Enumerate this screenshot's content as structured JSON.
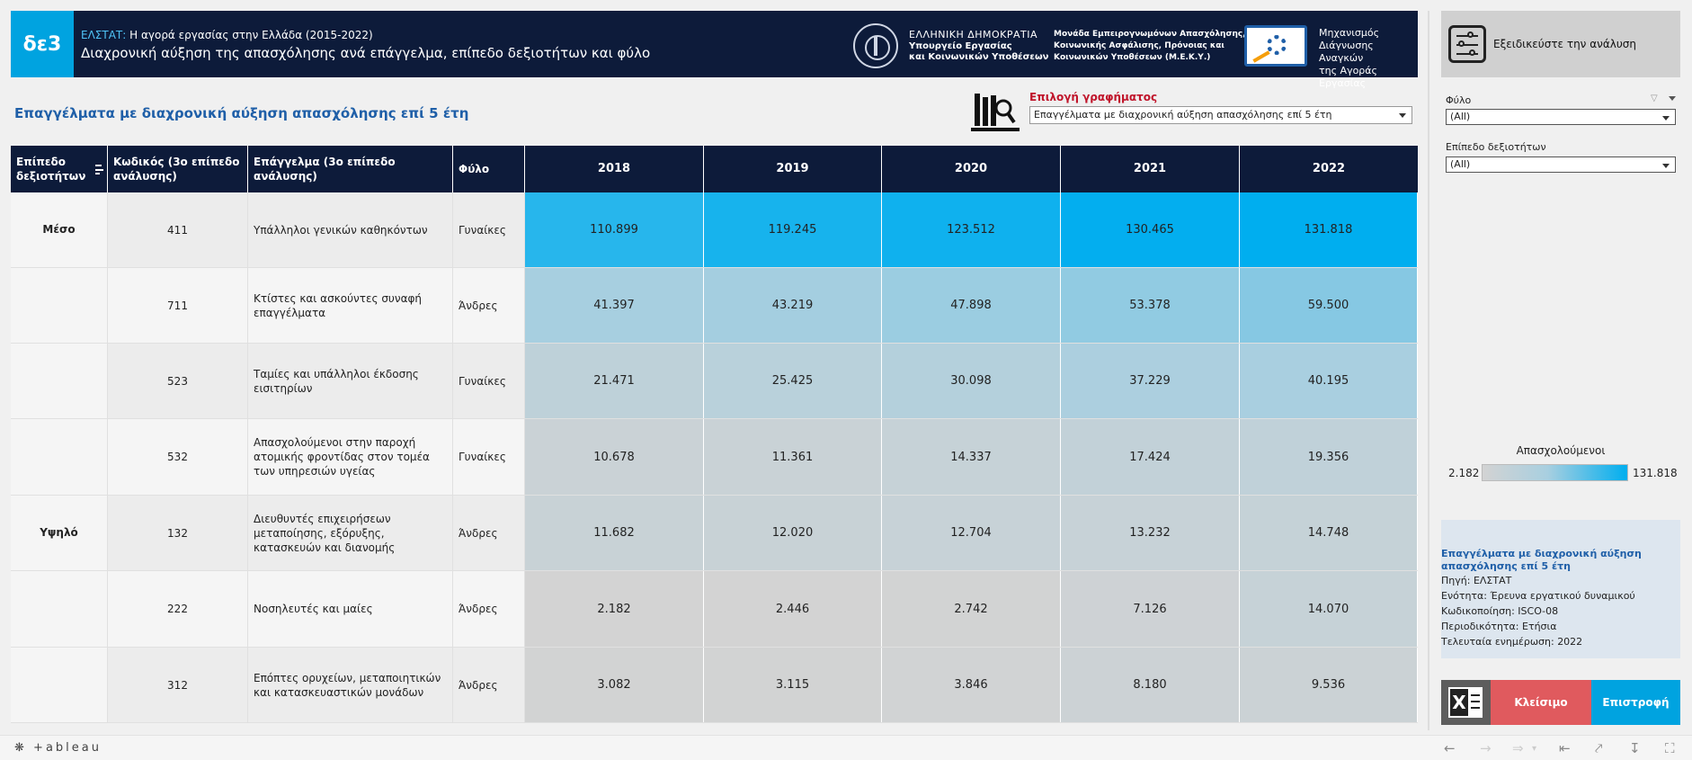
{
  "header": {
    "logo": "δε3",
    "source_prefix": "ΕΛΣΤΑΤ:",
    "subtitle": "Η αγορά εργασίας στην Ελλάδα (2015-2022)",
    "title": "Διαχρονική αύξηση της απασχόλησης ανά επάγγελμα, επίπεδο δεξιοτήτων και φύλο",
    "gov_line1": "ΕΛΛΗΝΙΚΗ ΔΗΜΟΚΡΑΤΙΑ",
    "gov_line2": "Υπουργείο Εργασίας",
    "gov_line3": "και Κοινωνικών Υποθέσεων",
    "mek_line1": "Μονάδα Εμπειρογνωμόνων Απασχόλησης,",
    "mek_line2": "Κοινωνικής Ασφάλισης, Πρόνοιας και",
    "mek_line3": "Κοινωνικών Υποθέσεων (Μ.Ε.Κ.Υ.)",
    "mech_line1": "Μηχανισμός",
    "mech_line2": "Διάγνωσης Αναγκών",
    "mech_line3": "της Αγοράς Εργασίας"
  },
  "section_title": "Επαγγέλματα με διαχρονική αύξηση απασχόλησης επί 5 έτη",
  "chart_selector": {
    "label": "Επιλογή γραφήματος",
    "value": "Επαγγέλματα με διαχρονική αύξηση απασχόλησης επί 5 έτη"
  },
  "table": {
    "headers": {
      "level": "Επίπεδο δεξιοτήτων",
      "code": "Κωδικός (3ο επίπεδο ανάλυσης)",
      "occupation": "Επάγγελμα (3ο επίπεδο ανάλυσης)",
      "gender": "Φύλο",
      "years": [
        "2018",
        "2019",
        "2020",
        "2021",
        "2022"
      ]
    },
    "levels": [
      "Μέσο",
      "Υψηλό"
    ],
    "rows": [
      {
        "code": "411",
        "occupation": "Υπάλληλοι γενικών καθηκόντων",
        "gender": "Γυναίκες",
        "values": [
          "110.899",
          "119.245",
          "123.512",
          "130.465",
          "131.818"
        ],
        "nums": [
          110899,
          119245,
          123512,
          130465,
          131818
        ]
      },
      {
        "code": "711",
        "occupation": "Κτίστες και ασκούντες συναφή επαγγέλματα",
        "gender": "Άνδρες",
        "values": [
          "41.397",
          "43.219",
          "47.898",
          "53.378",
          "59.500"
        ],
        "nums": [
          41397,
          43219,
          47898,
          53378,
          59500
        ]
      },
      {
        "code": "523",
        "occupation": "Ταμίες και υπάλληλοι έκδοσης εισιτηρίων",
        "gender": "Γυναίκες",
        "values": [
          "21.471",
          "25.425",
          "30.098",
          "37.229",
          "40.195"
        ],
        "nums": [
          21471,
          25425,
          30098,
          37229,
          40195
        ]
      },
      {
        "code": "532",
        "occupation": "Απασχολούμενοι στην παροχή ατομικής φροντίδας στον τομέα των υπηρεσιών υγείας",
        "gender": "Γυναίκες",
        "values": [
          "10.678",
          "11.361",
          "14.337",
          "17.424",
          "19.356"
        ],
        "nums": [
          10678,
          11361,
          14337,
          17424,
          19356
        ]
      },
      {
        "code": "132",
        "occupation": "Διευθυντές επιχειρήσεων μεταποίησης, εξόρυξης, κατασκευών και διανομής",
        "gender": "Άνδρες",
        "values": [
          "11.682",
          "12.020",
          "12.704",
          "13.232",
          "14.748"
        ],
        "nums": [
          11682,
          12020,
          12704,
          13232,
          14748
        ]
      },
      {
        "code": "222",
        "occupation": "Νοσηλευτές και μαίες",
        "gender": "Άνδρες",
        "values": [
          "2.182",
          "2.446",
          "2.742",
          "7.126",
          "14.070"
        ],
        "nums": [
          2182,
          2446,
          2742,
          7126,
          14070
        ]
      },
      {
        "code": "312",
        "occupation": "Επόπτες ορυχείων, μεταποιητικών και κατασκευαστικών μονάδων",
        "gender": "Άνδρες",
        "values": [
          "3.082",
          "3.115",
          "3.846",
          "8.180",
          "9.536"
        ],
        "nums": [
          3082,
          3115,
          3846,
          8180,
          9536
        ]
      }
    ]
  },
  "panel": {
    "analysis_label": "Εξειδικεύστε την ανάλυση",
    "gender_filter_label": "Φύλο",
    "gender_filter_value": "(All)",
    "level_filter_label": "Επίπεδο δεξιοτήτων",
    "level_filter_value": "(All)",
    "legend_title": "Απασχολούμενοι",
    "legend_min": "2.182",
    "legend_max": "131.818",
    "legend_min_num": 2182,
    "legend_max_num": 131818
  },
  "info": {
    "title": "Επαγγέλματα με διαχρονική αύξηση απασχόλησης επί 5 έτη",
    "source_key": "Πηγή:",
    "source_val": "ΕΛΣΤΑΤ",
    "unit_key": "Ενότητα:",
    "unit_val": "Έρευνα εργατικού δυναμικού",
    "coding_key": "Κωδικοποίηση:",
    "coding_val": "ISCO-08",
    "period_key": "Περιοδικότητα:",
    "period_val": "Ετήσια",
    "updated_key": "Τελευταία ενημέρωση:",
    "updated_val": "2022"
  },
  "buttons": {
    "close": "Κλείσιμο",
    "back": "Επιστροφή",
    "excel": "X"
  },
  "toolbar": {
    "brand": "+ableau"
  },
  "colors": {
    "navy": "#0d1b3a",
    "accent": "#00a3e0",
    "low": "#d3d3d3",
    "mid": "#a8cfe0",
    "high": "#00aeef"
  }
}
